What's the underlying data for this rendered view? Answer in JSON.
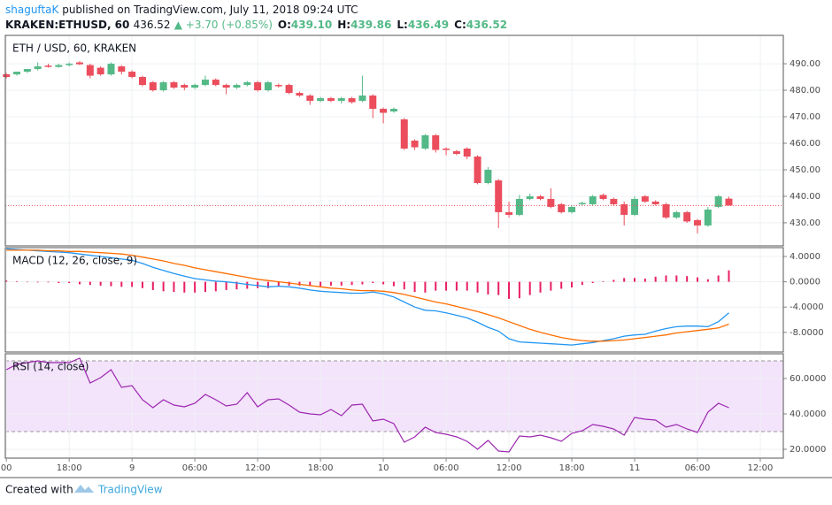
{
  "header": {
    "author": "shaguftaK",
    "published": "published on TradingView.com, July 11, 2018 09:24 UTC",
    "symbol": "KRAKEN:ETHUSD, 60",
    "last": "436.52",
    "change": "▲ +3.70 (+0.85%)",
    "ohlc": [
      {
        "label": "O:",
        "value": "439.10"
      },
      {
        "label": "H:",
        "value": "439.86"
      },
      {
        "label": "L:",
        "value": "436.49"
      },
      {
        "label": "C:",
        "value": "436.52"
      }
    ]
  },
  "footer": {
    "text": "Created with",
    "brand": "TradingView"
  },
  "chart_data": [
    {
      "type": "candlestick",
      "title": "ETH / USD, 60, KRAKEN",
      "up_color": "#53b987",
      "down_color": "#eb4d5c",
      "last_price_line": true,
      "x": [
        12,
        13,
        14,
        15,
        16,
        17,
        18,
        19,
        20,
        21,
        22,
        23,
        24,
        25,
        26,
        27,
        28,
        29,
        30,
        31,
        32,
        33,
        34,
        35,
        36,
        37,
        38,
        39,
        40,
        41,
        42,
        43,
        44,
        45,
        46,
        47,
        48,
        49,
        50,
        51,
        52,
        53,
        54,
        55,
        56,
        57,
        58,
        59,
        60,
        61,
        62,
        63,
        64,
        65,
        66,
        67,
        68,
        69,
        70,
        71,
        72,
        73,
        74,
        75,
        76,
        77,
        78,
        79,
        80,
        81
      ],
      "open": [
        486,
        486,
        487,
        488,
        489.3,
        488.8,
        489.5,
        490.5,
        489.5,
        488.5,
        486,
        489,
        487,
        485,
        483,
        480,
        483,
        482,
        481,
        482,
        484,
        482,
        481,
        482,
        483,
        480,
        482,
        482,
        479,
        478,
        476,
        477,
        476,
        477,
        476,
        478,
        473,
        472,
        469,
        461,
        458,
        463,
        458,
        457,
        458,
        455,
        445,
        446,
        434,
        433,
        439,
        440,
        439,
        437,
        434,
        437,
        437,
        440.5,
        439,
        437,
        433,
        440,
        438,
        437,
        432,
        434,
        431,
        429,
        436,
        439.1
      ],
      "high": [
        486.5,
        487,
        488,
        490.5,
        490,
        490,
        490.5,
        491,
        490,
        489,
        490.5,
        489.5,
        487.5,
        485.5,
        483.5,
        483.5,
        483.5,
        482.5,
        482.5,
        485.5,
        484.5,
        482.5,
        482.5,
        483.5,
        483.5,
        483.5,
        482.5,
        482.5,
        479.5,
        478.5,
        477.5,
        477.5,
        477.5,
        477.5,
        485.5,
        478.5,
        473.5,
        473.5,
        469.5,
        461.5,
        463.5,
        463.5,
        458.5,
        457.5,
        458.5,
        455.5,
        451,
        446.5,
        438,
        440.5,
        441,
        440.5,
        443,
        437.5,
        436.5,
        438,
        440.5,
        441,
        439.5,
        438,
        440,
        440.5,
        438.5,
        437.5,
        434.5,
        434.5,
        431.5,
        436,
        440.5,
        439.86
      ],
      "low": [
        484.5,
        485.5,
        486.5,
        487.5,
        488.5,
        488.5,
        489,
        489.5,
        484.5,
        485.5,
        485.5,
        486,
        484.5,
        481.5,
        479.5,
        479.5,
        480.5,
        480,
        480.5,
        481.5,
        481.5,
        478.5,
        480.5,
        481.5,
        479.5,
        479.5,
        481,
        478.5,
        477.5,
        474.5,
        475.5,
        475.5,
        475,
        475,
        475.5,
        469.5,
        467.5,
        471.5,
        457.5,
        457.5,
        457.5,
        456.5,
        455.5,
        455.5,
        454,
        444.5,
        444.5,
        428,
        432,
        432.5,
        438.5,
        438.5,
        435.5,
        433.5,
        433.5,
        436.5,
        436.5,
        438.5,
        436.5,
        429,
        432.5,
        437.5,
        436.5,
        431.5,
        431.5,
        430,
        426,
        428.5,
        435.5,
        436.49
      ],
      "close": [
        485,
        487,
        488,
        489,
        488.8,
        489.5,
        490,
        489.8,
        485.5,
        486,
        490,
        487,
        485,
        482,
        480,
        483,
        481,
        481,
        482,
        484,
        482,
        481,
        482,
        483,
        480,
        483,
        481.5,
        479,
        478,
        476,
        477,
        476,
        477,
        475.5,
        478,
        473,
        471.5,
        473,
        458,
        458.5,
        463,
        457.5,
        457.5,
        456,
        455,
        445,
        450,
        434,
        433,
        439,
        440,
        439,
        436,
        434,
        436,
        437.5,
        440,
        439,
        437,
        433,
        439,
        438,
        437,
        432,
        434,
        430.5,
        429,
        435,
        440,
        436.52
      ],
      "xlim": [
        11.9,
        86.2
      ],
      "xticks": [
        {
          "value": 12,
          "label": "00"
        },
        {
          "value": 18,
          "label": "18:00"
        },
        {
          "value": 24,
          "label": "9"
        },
        {
          "value": 30,
          "label": "06:00"
        },
        {
          "value": 36,
          "label": "12:00"
        },
        {
          "value": 42,
          "label": "18:00"
        },
        {
          "value": 48,
          "label": "10"
        },
        {
          "value": 54,
          "label": "06:00"
        },
        {
          "value": 60,
          "label": "12:00"
        },
        {
          "value": 66,
          "label": "18:00"
        },
        {
          "value": 72,
          "label": "11"
        },
        {
          "value": 78,
          "label": "06:00"
        },
        {
          "value": 84,
          "label": "12:00"
        }
      ],
      "ylim": [
        421.3,
        500.7
      ],
      "yticks": [
        {
          "value": 430,
          "label": "430.00"
        },
        {
          "value": 440,
          "label": "440.00"
        },
        {
          "value": 450,
          "label": "450.00"
        },
        {
          "value": 460,
          "label": "460.00"
        },
        {
          "value": 470,
          "label": "470.00"
        },
        {
          "value": 480,
          "label": "480.00"
        },
        {
          "value": 490,
          "label": "490.00"
        }
      ],
      "grid": true
    },
    {
      "type": "macd",
      "title": "MACD (12, 26, close, 9)",
      "series": [
        {
          "style": "histogram",
          "color": "#e91e63",
          "values": [
            0.2,
            0.1,
            0,
            -0.1,
            -0.1,
            -0.2,
            -0.2,
            -0.4,
            -0.5,
            -0.6,
            -0.7,
            -0.8,
            -0.8,
            -1.0,
            -1.3,
            -1.5,
            -1.6,
            -1.7,
            -1.7,
            -1.6,
            -1.5,
            -1.3,
            -1.2,
            -1.1,
            -1.0,
            -1.0,
            -0.7,
            -0.6,
            -0.6,
            -0.7,
            -0.7,
            -0.6,
            -0.6,
            -0.5,
            -0.4,
            -0.2,
            -0.4,
            -0.7,
            -1.2,
            -1.6,
            -1.7,
            -1.4,
            -1.4,
            -1.4,
            -1.4,
            -1.7,
            -2.0,
            -2.1,
            -2.7,
            -2.6,
            -2.1,
            -1.7,
            -1.4,
            -1.1,
            -0.9,
            -0.5,
            -0.2,
            0.1,
            0.3,
            0.6,
            0.6,
            0.5,
            0.8,
            1.0,
            1.0,
            0.9,
            0.7,
            0.4,
            1.0,
            1.8
          ]
        },
        {
          "style": "line",
          "color": "#2196f3",
          "values": [
            5.2,
            5.1,
            5.0,
            4.9,
            4.8,
            4.7,
            4.6,
            4.4,
            4.2,
            4.0,
            3.8,
            3.6,
            3.4,
            2.9,
            2.3,
            1.8,
            1.3,
            0.9,
            0.5,
            0.3,
            0.1,
            0.0,
            -0.2,
            -0.4,
            -0.6,
            -0.8,
            -0.7,
            -0.8,
            -1.0,
            -1.3,
            -1.5,
            -1.6,
            -1.7,
            -1.8,
            -1.8,
            -1.6,
            -1.9,
            -2.4,
            -3.2,
            -4.0,
            -4.5,
            -4.6,
            -4.9,
            -5.3,
            -5.7,
            -6.4,
            -7.2,
            -7.8,
            -9.0,
            -9.5,
            -9.6,
            -9.7,
            -9.8,
            -9.9,
            -10.0,
            -9.8,
            -9.6,
            -9.3,
            -9.0,
            -8.6,
            -8.4,
            -8.3,
            -7.8,
            -7.4,
            -7.1,
            -7.0,
            -7.0,
            -7.1,
            -6.3,
            -4.9
          ]
        },
        {
          "style": "line",
          "color": "#ff6d00",
          "values": [
            5.0,
            5.0,
            5.0,
            5.0,
            4.9,
            4.9,
            4.8,
            4.8,
            4.7,
            4.6,
            4.5,
            4.4,
            4.2,
            3.9,
            3.6,
            3.3,
            2.9,
            2.6,
            2.2,
            1.9,
            1.6,
            1.3,
            1.0,
            0.7,
            0.4,
            0.2,
            0.0,
            -0.2,
            -0.4,
            -0.6,
            -0.8,
            -1.0,
            -1.1,
            -1.3,
            -1.4,
            -1.4,
            -1.5,
            -1.7,
            -2.0,
            -2.4,
            -2.8,
            -3.2,
            -3.5,
            -3.9,
            -4.3,
            -4.7,
            -5.2,
            -5.7,
            -6.3,
            -6.9,
            -7.5,
            -8.0,
            -8.4,
            -8.8,
            -9.1,
            -9.3,
            -9.4,
            -9.4,
            -9.3,
            -9.2,
            -9.0,
            -8.8,
            -8.6,
            -8.4,
            -8.1,
            -7.9,
            -7.7,
            -7.5,
            -7.3,
            -6.7
          ]
        }
      ],
      "ylim": [
        -11.1,
        5.4
      ],
      "yticks": [
        {
          "value": -8,
          "label": "-8.0000"
        },
        {
          "value": -4,
          "label": "-4.0000"
        },
        {
          "value": 0,
          "label": "0.0000"
        },
        {
          "value": 4,
          "label": "4.0000"
        }
      ],
      "grid": true
    },
    {
      "type": "rsi",
      "title": "RSI (14, close)",
      "color": "#9c27b0",
      "band": [
        30,
        70
      ],
      "band_color": "#f3e3fb",
      "values": [
        65,
        68,
        69,
        70,
        69,
        69,
        69,
        71.5,
        57.5,
        60.5,
        65,
        55,
        56,
        48,
        43.5,
        48,
        45,
        44,
        46,
        51,
        48,
        44.5,
        45.5,
        52,
        44,
        48,
        48.5,
        45,
        41,
        40,
        39.5,
        42.5,
        39,
        45,
        45.5,
        36,
        37,
        34.5,
        24,
        27,
        32.5,
        29.5,
        28.5,
        27,
        24.5,
        20,
        25,
        19,
        18.5,
        27.5,
        27,
        28,
        26.5,
        24.5,
        29,
        30.5,
        34,
        33,
        31.5,
        28,
        38,
        37,
        36.5,
        32.5,
        34,
        31.5,
        29.5,
        41,
        46,
        43.5
      ],
      "ylim": [
        15,
        74
      ],
      "yticks": [
        {
          "value": 20,
          "label": "20.0000"
        },
        {
          "value": 40,
          "label": "40.0000"
        },
        {
          "value": 60,
          "label": "60.0000"
        }
      ],
      "grid": true
    }
  ]
}
